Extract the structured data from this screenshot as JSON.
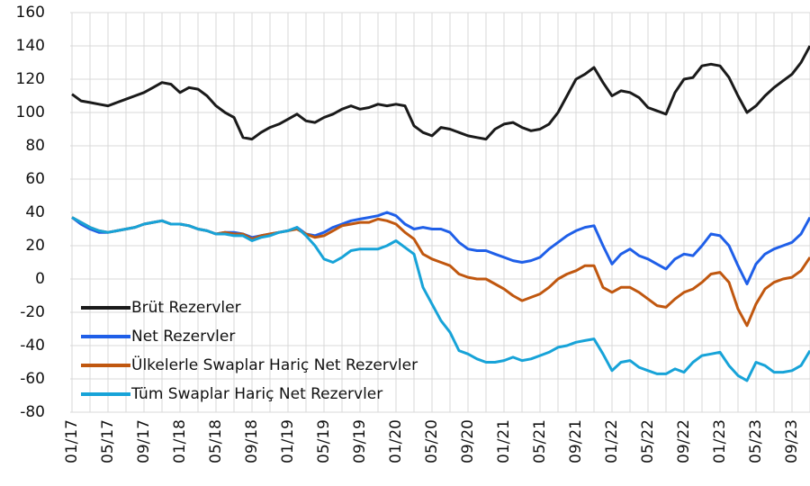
{
  "chart_data": {
    "type": "line",
    "categories": [
      "01/17",
      null,
      null,
      null,
      "05/17",
      null,
      null,
      null,
      "09/17",
      null,
      null,
      null,
      "01/18",
      null,
      null,
      null,
      "05/18",
      null,
      null,
      null,
      "09/18",
      null,
      null,
      null,
      "01/19",
      null,
      null,
      null,
      "05/19",
      null,
      null,
      null,
      "09/19",
      null,
      null,
      null,
      "01/20",
      null,
      null,
      null,
      "05/20",
      null,
      null,
      null,
      "09/20",
      null,
      null,
      null,
      "01/21",
      null,
      null,
      null,
      "05/21",
      null,
      null,
      null,
      "09/21",
      null,
      null,
      null,
      "01/22",
      null,
      null,
      null,
      "05/22",
      null,
      null,
      null,
      "09/22",
      null,
      null,
      null,
      "01/23",
      null,
      null,
      null,
      "05/23",
      null,
      null,
      null,
      "09/23",
      null,
      null
    ],
    "series": [
      {
        "name": "Brüt Rezervler",
        "color": "#1a1a1a",
        "values": [
          111,
          107,
          106,
          105,
          104,
          106,
          108,
          110,
          112,
          115,
          118,
          117,
          112,
          115,
          114,
          110,
          104,
          100,
          97,
          85,
          84,
          88,
          91,
          93,
          96,
          99,
          95,
          94,
          97,
          99,
          102,
          104,
          102,
          103,
          105,
          104,
          105,
          104,
          92,
          88,
          86,
          91,
          90,
          88,
          86,
          85,
          84,
          90,
          93,
          94,
          91,
          89,
          90,
          93,
          100,
          110,
          120,
          123,
          127,
          118,
          110,
          113,
          112,
          109,
          103,
          101,
          99,
          112,
          120,
          121,
          128,
          129,
          128,
          121,
          110,
          100,
          104,
          110,
          115,
          119,
          123,
          130,
          140
        ]
      },
      {
        "name": "Net Rezervler",
        "color": "#1f5fe8",
        "values": [
          37,
          33,
          30,
          28,
          28,
          29,
          30,
          31,
          33,
          34,
          35,
          33,
          33,
          32,
          30,
          29,
          27,
          28,
          28,
          27,
          25,
          26,
          27,
          28,
          29,
          31,
          27,
          26,
          28,
          31,
          33,
          35,
          36,
          37,
          38,
          40,
          38,
          33,
          30,
          31,
          30,
          30,
          28,
          22,
          18,
          17,
          17,
          15,
          13,
          11,
          10,
          11,
          13,
          18,
          22,
          26,
          29,
          31,
          32,
          20,
          9,
          15,
          18,
          14,
          12,
          9,
          6,
          12,
          15,
          14,
          20,
          27,
          26,
          20,
          8,
          -3,
          9,
          15,
          18,
          20,
          22,
          27,
          37
        ]
      },
      {
        "name": "Ülkelerle Swaplar Hariç Net Rezervler",
        "color": "#c0570f",
        "values": [
          37,
          34,
          31,
          29,
          28,
          29,
          30,
          31,
          33,
          34,
          35,
          33,
          33,
          32,
          30,
          29,
          27,
          28,
          27,
          27,
          24,
          26,
          27,
          28,
          29,
          30,
          27,
          25,
          26,
          29,
          32,
          33,
          34,
          34,
          36,
          35,
          33,
          28,
          24,
          15,
          12,
          10,
          8,
          3,
          1,
          0,
          0,
          -3,
          -6,
          -10,
          -13,
          -11,
          -9,
          -5,
          0,
          3,
          5,
          8,
          8,
          -5,
          -8,
          -5,
          -5,
          -8,
          -12,
          -16,
          -17,
          -12,
          -8,
          -6,
          -2,
          3,
          4,
          -2,
          -18,
          -28,
          -15,
          -6,
          -2,
          0,
          1,
          5,
          13
        ]
      },
      {
        "name": "Tüm Swaplar Hariç Net Rezervler",
        "color": "#17a3d8",
        "values": [
          37,
          34,
          31,
          29,
          28,
          29,
          30,
          31,
          33,
          34,
          35,
          33,
          33,
          32,
          30,
          29,
          27,
          27,
          26,
          26,
          23,
          25,
          26,
          28,
          29,
          31,
          26,
          20,
          12,
          10,
          13,
          17,
          18,
          18,
          18,
          20,
          23,
          19,
          15,
          -5,
          -15,
          -25,
          -32,
          -43,
          -45,
          -48,
          -50,
          -50,
          -49,
          -47,
          -49,
          -48,
          -46,
          -44,
          -41,
          -40,
          -38,
          -37,
          -36,
          -45,
          -55,
          -50,
          -49,
          -53,
          -55,
          -57,
          -57,
          -54,
          -56,
          -50,
          -46,
          -45,
          -44,
          -52,
          -58,
          -61,
          -50,
          -52,
          -56,
          -56,
          -55,
          -52,
          -43
        ]
      }
    ],
    "ylim": [
      -80,
      160
    ],
    "yticks": [
      -80,
      -60,
      -40,
      -20,
      0,
      20,
      40,
      60,
      80,
      100,
      120,
      140,
      160
    ],
    "grid": true,
    "legend": "lower left"
  }
}
